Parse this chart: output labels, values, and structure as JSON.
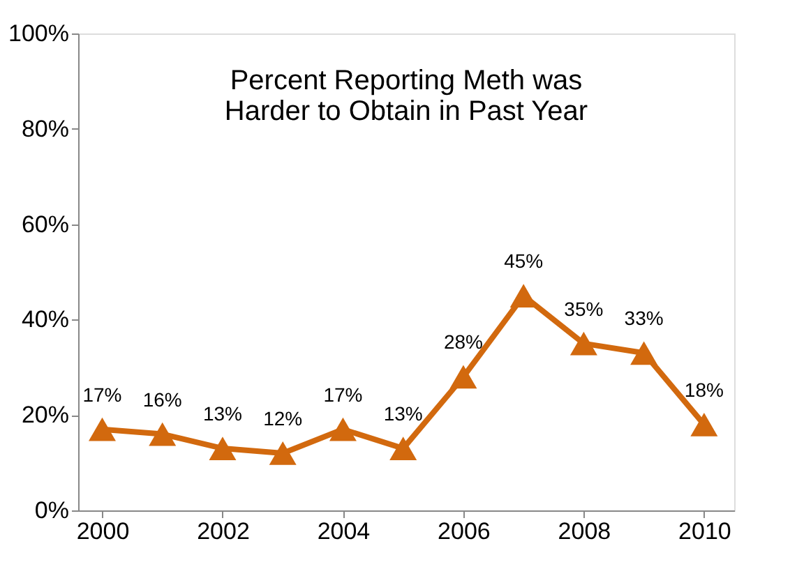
{
  "chart_data": {
    "type": "line",
    "title": [
      "Percent Reporting Meth was",
      "Harder to Obtain in Past Year"
    ],
    "x": [
      2000,
      2001,
      2002,
      2003,
      2004,
      2005,
      2006,
      2007,
      2008,
      2009,
      2010
    ],
    "series": [
      {
        "color": "#d2690e",
        "values": [
          17,
          16,
          13,
          12,
          17,
          13,
          28,
          45,
          35,
          33,
          18
        ],
        "value_labels": [
          "17%",
          "16%",
          "13%",
          "12%",
          "17%",
          "13%",
          "28%",
          "45%",
          "35%",
          "33%",
          "18%"
        ]
      }
    ],
    "xlim": [
      1999.6,
      2010.5
    ],
    "xticks": [
      2000,
      2002,
      2004,
      2006,
      2008,
      2010
    ],
    "ylim": [
      0,
      100
    ],
    "yticks": [
      {
        "value": 0,
        "label": "0%"
      },
      {
        "value": 20,
        "label": "20%"
      },
      {
        "value": 40,
        "label": "40%"
      },
      {
        "value": 60,
        "label": "60%"
      },
      {
        "value": 80,
        "label": "80%"
      },
      {
        "value": 100,
        "label": "100%"
      }
    ],
    "marker": "triangle",
    "line_style": "solid",
    "grid": false
  }
}
